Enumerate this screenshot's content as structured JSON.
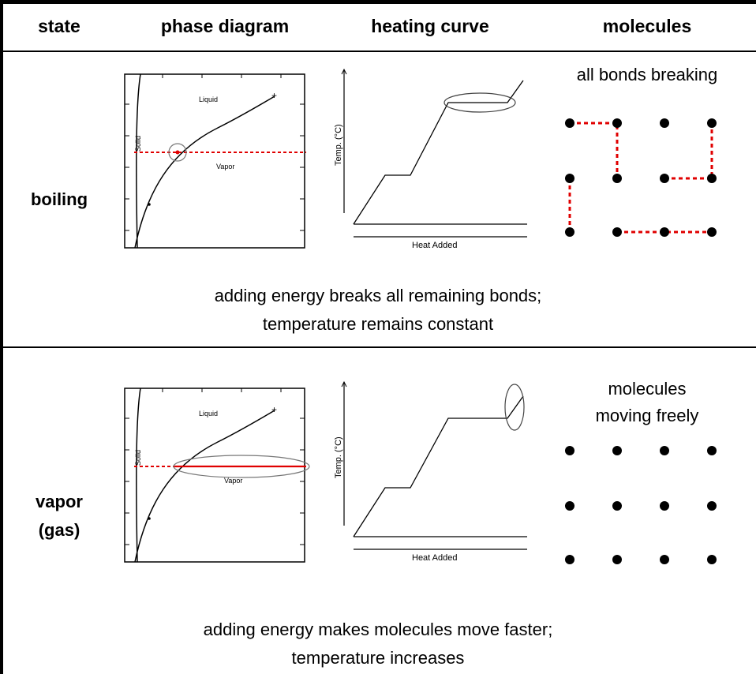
{
  "headers": {
    "state": "state",
    "phase_diagram": "phase diagram",
    "heating_curve": "heating curve",
    "molecules": "molecules"
  },
  "rows": [
    {
      "state": "boiling",
      "molecules_caption": "all bonds breaking",
      "caption_line1": "adding energy breaks all remaining bonds;",
      "caption_line2": "temperature remains constant"
    },
    {
      "state_line1": "vapor",
      "state_line2": "(gas)",
      "molecules_caption_line1": "molecules",
      "molecules_caption_line2": "moving freely",
      "caption_line1": "adding energy makes molecules move faster;",
      "caption_line2": "temperature increases"
    }
  ],
  "phase_diagram_labels": {
    "liquid": "Liquid",
    "solid": "Solid",
    "vapor": "Vapor"
  },
  "heating_curve_labels": {
    "x_axis": "Heat Added",
    "y_axis": "Temp. (°C)"
  },
  "colors": {
    "highlight_red": "#e00000",
    "border": "#000000",
    "ellipse": "#777777"
  }
}
